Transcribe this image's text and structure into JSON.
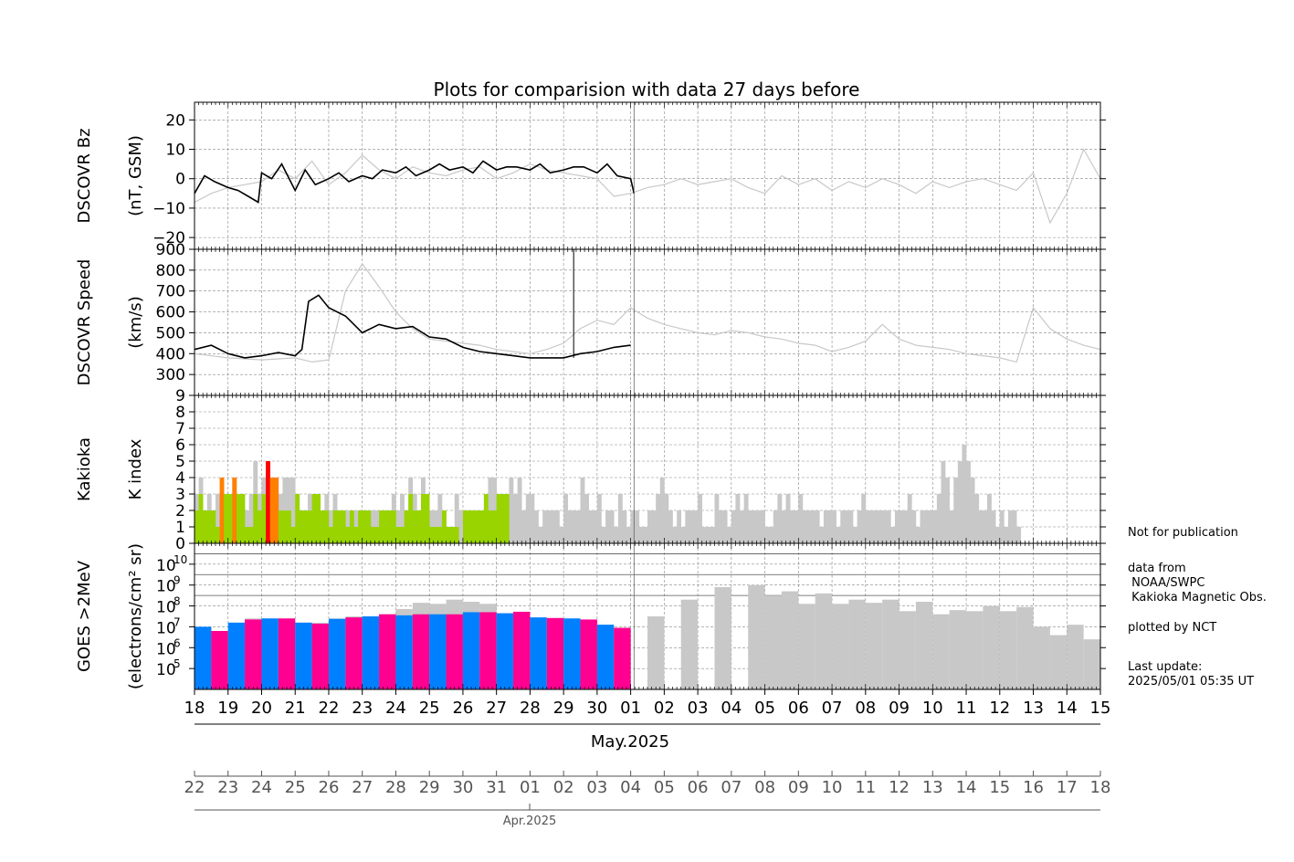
{
  "chart_data": {
    "type": "line",
    "title": "Plots for comparision with data 27 days before",
    "panels": [
      {
        "id": "bz",
        "ylabel_outer": "DSCOVR Bz",
        "ylabel_inner": "(nT, GSM)",
        "ylim": [
          -24,
          26
        ],
        "yticks": [
          -20,
          -10,
          0,
          10,
          20
        ],
        "ytick_labels": [
          "−20",
          "−10",
          "0",
          "10",
          "20"
        ],
        "series": [
          {
            "color": "#000000",
            "x": [
              0,
              0.3,
              0.6,
              1,
              1.3,
              1.6,
              1.9,
              2,
              2.3,
              2.6,
              3,
              3.3,
              3.6,
              4,
              4.3,
              4.6,
              5,
              5.3,
              5.6,
              6,
              6.3,
              6.6,
              7,
              7.3,
              7.6,
              8,
              8.3,
              8.6,
              9,
              9.3,
              9.6,
              10,
              10.3,
              10.6,
              11,
              11.3,
              11.6,
              12,
              12.3,
              12.6,
              13,
              13.1
            ],
            "y": [
              -5,
              1,
              -1,
              -3,
              -4,
              -6,
              -8,
              2,
              0,
              5,
              -4,
              3,
              -2,
              0,
              2,
              -1,
              1,
              0,
              3,
              2,
              4,
              1,
              3,
              5,
              3,
              4,
              2,
              6,
              3,
              4,
              4,
              3,
              5,
              2,
              3,
              4,
              4,
              2,
              5,
              1,
              0,
              -5
            ]
          },
          {
            "color": "#c8c8c8",
            "x": [
              0,
              0.5,
              1,
              1.5,
              2,
              2.5,
              3,
              3.5,
              4,
              4.5,
              5,
              5.5,
              6,
              6.5,
              7,
              7.5,
              8,
              8.5,
              9,
              9.5,
              10,
              10.5,
              11,
              11.5,
              12,
              12.5,
              13,
              13.5,
              14,
              14.5,
              15,
              15.5,
              16,
              16.5,
              17,
              17.5,
              18,
              18.5,
              19,
              19.5,
              20,
              20.5,
              21,
              21.5,
              22,
              22.5,
              23,
              23.5,
              24,
              24.5,
              25,
              25.5,
              26,
              26.5,
              27
            ],
            "y": [
              -8,
              -5,
              -3,
              -2,
              -1,
              3,
              0,
              6,
              -2,
              2,
              8,
              3,
              0,
              4,
              2,
              1,
              3,
              4,
              0,
              2,
              5,
              3,
              2,
              1,
              0,
              -6,
              -5,
              -3,
              -2,
              0,
              -2,
              -1,
              0,
              -3,
              -5,
              1,
              -2,
              0,
              -4,
              -1,
              -3,
              0,
              -2,
              -5,
              -1,
              -3,
              -1,
              0,
              -2,
              -4,
              2,
              -15,
              -5,
              10,
              0
            ]
          }
        ]
      },
      {
        "id": "speed",
        "ylabel_outer": "DSCOVR Speed",
        "ylabel_inner": "(km/s)",
        "ylim": [
          200,
          900
        ],
        "yticks": [
          300,
          400,
          500,
          600,
          700,
          800,
          900
        ],
        "ytick_labels": [
          "300",
          "400",
          "500",
          "600",
          "700",
          "800",
          "900"
        ],
        "series": [
          {
            "color": "#000000",
            "x": [
              0,
              0.5,
              1,
              1.5,
              2,
              2.5,
              3,
              3.2,
              3.4,
              3.7,
              4,
              4.5,
              5,
              5.5,
              6,
              6.5,
              7,
              7.5,
              8,
              8.5,
              9,
              9.5,
              10,
              10.5,
              11,
              11.5,
              12,
              12.5,
              13
            ],
            "y": [
              420,
              440,
              400,
              380,
              390,
              405,
              390,
              420,
              650,
              680,
              620,
              580,
              500,
              540,
              520,
              530,
              480,
              470,
              430,
              410,
              400,
              390,
              380,
              380,
              380,
              400,
              410,
              430,
              440
            ]
          },
          {
            "color": "#c8c8c8",
            "x": [
              0,
              1,
              2,
              3,
              3.5,
              4,
              4.5,
              5,
              5.5,
              6,
              6.5,
              7,
              7.5,
              8,
              8.5,
              9,
              9.5,
              10,
              10.5,
              11,
              11.5,
              12,
              12.5,
              13,
              13.5,
              14,
              14.5,
              15,
              15.5,
              16,
              16.5,
              17,
              17.5,
              18,
              18.5,
              19,
              19.5,
              20,
              20.5,
              21,
              21.5,
              22,
              22.5,
              23,
              23.5,
              24,
              24.5,
              25,
              25.5,
              26,
              26.5,
              27
            ],
            "y": [
              400,
              380,
              370,
              380,
              360,
              370,
              700,
              830,
              720,
              600,
              520,
              470,
              460,
              450,
              440,
              420,
              410,
              400,
              420,
              450,
              520,
              560,
              540,
              620,
              570,
              540,
              520,
              500,
              490,
              510,
              500,
              480,
              470,
              450,
              440,
              410,
              430,
              460,
              540,
              470,
              440,
              430,
              420,
              400,
              390,
              380,
              360,
              620,
              520,
              470,
              440,
              420
            ]
          }
        ]
      },
      {
        "id": "kp",
        "ylabel_outer": "Kakioka",
        "ylabel_inner": "K index",
        "ylim": [
          0,
          9
        ],
        "yticks": [
          0,
          1,
          2,
          3,
          4,
          5,
          6,
          7,
          8,
          9
        ],
        "ytick_labels": [
          "0",
          "1",
          "2",
          "3",
          "4",
          "5",
          "6",
          "7",
          "8",
          "9"
        ],
        "k_current": [
          2,
          3,
          2,
          2,
          2,
          1,
          4,
          3,
          3,
          4,
          3,
          3,
          1,
          1,
          3,
          2,
          3,
          5,
          4,
          4,
          2,
          2,
          2,
          1,
          3,
          2,
          2,
          2,
          3,
          3,
          2,
          2,
          1,
          2,
          2,
          2,
          1,
          2,
          1,
          2,
          2,
          2,
          1,
          1,
          2,
          2,
          2,
          2,
          1,
          1,
          2,
          3,
          2,
          2,
          3,
          3,
          1,
          1,
          1,
          2,
          1,
          1,
          1,
          0,
          2,
          2,
          2,
          2,
          2,
          3,
          2,
          2,
          3,
          3,
          3
        ],
        "k_previous": [
          3,
          4,
          2,
          3,
          1,
          3,
          2,
          2,
          3,
          4,
          3,
          1,
          2,
          3,
          5,
          3,
          4,
          2,
          2,
          3,
          3,
          4,
          4,
          4,
          3,
          2,
          2,
          3,
          2,
          2,
          2,
          3,
          2,
          3,
          2,
          1,
          2,
          1,
          2,
          2,
          1,
          1,
          2,
          2,
          1,
          1,
          2,
          3,
          2,
          3,
          2,
          4,
          3,
          2,
          4,
          3,
          2,
          2,
          3,
          2,
          1,
          1,
          3,
          2,
          2,
          1,
          2,
          1,
          1,
          3,
          4,
          4,
          3,
          2,
          3,
          4,
          3,
          4,
          2,
          3,
          3,
          2,
          1,
          2,
          2,
          2,
          2,
          1,
          3,
          2,
          2,
          2,
          4,
          3,
          2,
          2,
          3,
          1,
          2,
          2,
          1,
          3,
          2,
          1,
          2,
          2,
          1,
          1,
          2,
          2,
          3,
          4,
          3,
          2,
          1,
          2,
          1,
          2,
          2,
          2,
          3,
          1,
          1,
          1,
          3,
          2,
          2,
          1,
          2,
          3,
          2,
          3,
          2,
          2,
          2,
          2,
          1,
          1,
          2,
          3,
          2,
          3,
          2,
          2,
          3,
          2,
          2,
          2,
          2,
          1,
          2,
          2,
          2,
          1,
          2,
          2,
          2,
          1,
          2,
          3,
          2,
          2,
          2,
          2,
          2,
          2,
          1,
          2,
          2,
          2,
          3,
          2,
          1,
          2,
          2,
          2,
          2,
          3,
          5,
          4,
          2,
          4,
          5,
          6,
          5,
          4,
          3,
          2,
          2,
          3,
          2,
          1,
          2,
          1,
          2,
          2,
          1
        ],
        "k_colors": {
          "quiet": "#99d400",
          "active": "#ff7f00",
          "storm": "#ff0000",
          "previous": "#c8c8c8"
        }
      },
      {
        "id": "electron",
        "ylabel_outer": "GOES >2MeV",
        "ylabel_inner": "(electrons/cm² sr)",
        "yscale": "log",
        "ylim": [
          10000.0,
          100000000000.0
        ],
        "yticks_exp": [
          5,
          6,
          7,
          8,
          9,
          10
        ],
        "tick_base": "10",
        "tick_exponents": [
          "5",
          "6",
          "7",
          "8",
          "9",
          "10"
        ],
        "hlines": [
          8.5,
          9.5,
          10.5
        ],
        "flux_current_log": [
          7.0,
          6.8,
          7.2,
          7.35,
          7.4,
          7.4,
          7.2,
          7.15,
          7.38,
          7.45,
          7.5,
          7.6,
          7.55,
          7.6,
          7.6,
          7.6,
          7.7,
          7.7,
          7.65,
          7.72,
          7.45,
          7.42,
          7.4,
          7.35,
          7.1,
          6.95
        ],
        "flux_previous_log": [
          7.0,
          6.8,
          7.2,
          7.4,
          7.4,
          7.4,
          7.2,
          7.2,
          7.4,
          7.5,
          7.5,
          7.6,
          7.85,
          8.15,
          8.1,
          8.3,
          8.2,
          8.1,
          7.65,
          7.72,
          7.45,
          7.42,
          7.4,
          7.3,
          7.1,
          6.95,
          0,
          7.5,
          0,
          8.3,
          0,
          8.9,
          0,
          9.0,
          8.5,
          8.7,
          8.1,
          8.6,
          8.1,
          8.3,
          8.15,
          8.3,
          7.75,
          8.2,
          7.6,
          7.8,
          7.75,
          8.0,
          7.75,
          7.95,
          7.0,
          6.6,
          7.1,
          6.4
        ],
        "flux_colors": [
          "#0080ff",
          "#ff0090"
        ],
        "flux_previous_color": "#c8c8c8"
      }
    ],
    "x_days": 27,
    "x_tick_labels_top": [
      "18",
      "19",
      "20",
      "21",
      "22",
      "23",
      "24",
      "25",
      "26",
      "27",
      "28",
      "29",
      "30",
      "01",
      "02",
      "03",
      "04",
      "05",
      "06",
      "07",
      "08",
      "09",
      "10",
      "11",
      "12",
      "13",
      "14",
      "15"
    ],
    "x_label_top": "May.2025",
    "x_tick_labels_bottom": [
      "22",
      "23",
      "24",
      "25",
      "26",
      "27",
      "28",
      "29",
      "30",
      "31",
      "01",
      "02",
      "03",
      "04",
      "05",
      "06",
      "07",
      "08",
      "09",
      "10",
      "11",
      "12",
      "13",
      "14",
      "15",
      "16",
      "17",
      "18"
    ],
    "x_label_bottom": "Apr.2025",
    "current_end_day": 13.1,
    "grid": true
  },
  "side_notes": {
    "not_for_publication": "Not for publication",
    "data_from": "data from\n NOAA/SWPC\n Kakioka Magnetic Obs.",
    "plotted_by": "plotted by NCT",
    "last_update": "Last update:\n2025/05/01 05:35 UT"
  }
}
